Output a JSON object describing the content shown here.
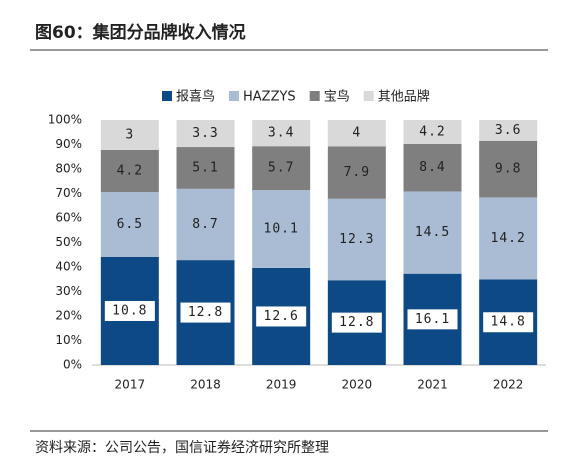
{
  "chart_data": {
    "type": "bar",
    "stacked": "percent",
    "title": "图60：集团分品牌收入情况",
    "source": "资料来源：公司公告，国信证券经济研究所整理",
    "categories": [
      "2017",
      "2018",
      "2019",
      "2020",
      "2021",
      "2022"
    ],
    "series": [
      {
        "name": "报喜鸟",
        "color": "#0d4a85",
        "values": [
          10.8,
          12.8,
          12.6,
          12.8,
          16.1,
          14.8
        ]
      },
      {
        "name": "HAZZYS",
        "color": "#a9bcd3",
        "values": [
          6.5,
          8.7,
          10.1,
          12.3,
          14.5,
          14.2
        ]
      },
      {
        "name": "宝鸟",
        "color": "#7f7f7f",
        "values": [
          4.2,
          5.1,
          5.7,
          7.9,
          8.4,
          9.8
        ]
      },
      {
        "name": "其他品牌",
        "color": "#d9d9d9",
        "values": [
          3.0,
          3.3,
          3.4,
          4.0,
          4.2,
          3.6
        ]
      }
    ],
    "ylim": [
      0,
      100
    ],
    "yticks": [
      {
        "value": 0,
        "label": "0%"
      },
      {
        "value": 10,
        "label": "10%"
      },
      {
        "value": 20,
        "label": "20%"
      },
      {
        "value": 30,
        "label": "30%"
      },
      {
        "value": 40,
        "label": "40%"
      },
      {
        "value": 50,
        "label": "50%"
      },
      {
        "value": 60,
        "label": "60%"
      },
      {
        "value": 70,
        "label": "70%"
      },
      {
        "value": 80,
        "label": "80%"
      },
      {
        "value": 90,
        "label": "90%"
      },
      {
        "value": 100,
        "label": "100%"
      }
    ]
  }
}
